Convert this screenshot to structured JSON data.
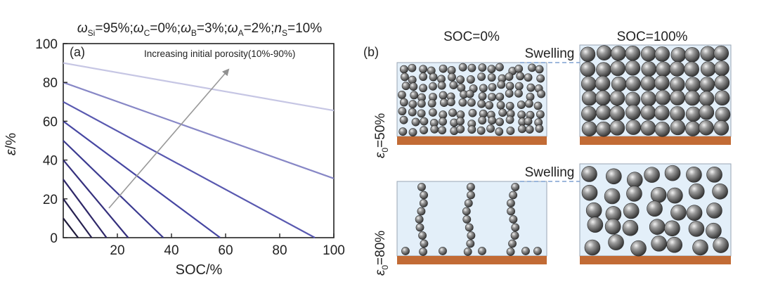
{
  "figure": {
    "panel_a_label": "(a)",
    "panel_b_label": "(b)"
  },
  "chart_data": {
    "type": "line",
    "title": "ωSi=95%;ωC=0%;ωB=3%;ωA=2%;nS=10%",
    "title_parts": [
      {
        "sym": "ω",
        "sub": "Si",
        "val": "=95%;"
      },
      {
        "sym": "ω",
        "sub": "C",
        "val": "=0%;"
      },
      {
        "sym": "ω",
        "sub": "B",
        "val": "=3%;"
      },
      {
        "sym": "ω",
        "sub": "A",
        "val": "=2%;"
      },
      {
        "sym": "n",
        "sub": "S",
        "val": "=10%"
      }
    ],
    "xlabel": "SOC/%",
    "ylabel": "ε/%",
    "xlim": [
      0,
      100
    ],
    "ylim": [
      0,
      100
    ],
    "xticks": [
      "20",
      "40",
      "60",
      "80",
      "100"
    ],
    "yticks": [
      "0",
      "20",
      "40",
      "60",
      "80",
      "100"
    ],
    "annotation": "Increasing initial porosity(10%-90%)",
    "grid": false,
    "series": [
      {
        "x": [
          0,
          5.5
        ],
        "y": [
          10,
          0
        ],
        "color": "#1e1a3a"
      },
      {
        "x": [
          0,
          10.5
        ],
        "y": [
          20,
          0
        ],
        "color": "#262050"
      },
      {
        "x": [
          0,
          16
        ],
        "y": [
          30,
          0
        ],
        "color": "#2e2768"
      },
      {
        "x": [
          0,
          24
        ],
        "y": [
          40,
          0
        ],
        "color": "#35307d"
      },
      {
        "x": [
          0,
          37
        ],
        "y": [
          50,
          0
        ],
        "color": "#3b3a90"
      },
      {
        "x": [
          0,
          58
        ],
        "y": [
          60,
          0
        ],
        "color": "#4646a2"
      },
      {
        "x": [
          0,
          93
        ],
        "y": [
          70,
          0
        ],
        "color": "#5959b0"
      },
      {
        "x": [
          0,
          100
        ],
        "y": [
          80,
          30.5
        ],
        "color": "#8787c6"
      },
      {
        "x": [
          0,
          100
        ],
        "y": [
          90,
          65.5
        ],
        "color": "#c6c6e4"
      }
    ]
  },
  "schematic": {
    "col_headers": [
      "SOC=0%",
      "SOC=100%"
    ],
    "swelling_label": "Swelling",
    "rows": [
      {
        "eps_sym": "ε",
        "eps_sub": "0",
        "eps_val": "=50%"
      },
      {
        "eps_sym": "ε",
        "eps_sub": "0",
        "eps_val": "=80%"
      }
    ],
    "colors": {
      "box_fill": "#e3eff9",
      "box_stroke": "#9aa6b4",
      "substrate": "#c26b35",
      "sphere_dark": "#3c3c3c",
      "sphere_light": "#d6d6d6",
      "dash": "#7fa0d0"
    }
  }
}
